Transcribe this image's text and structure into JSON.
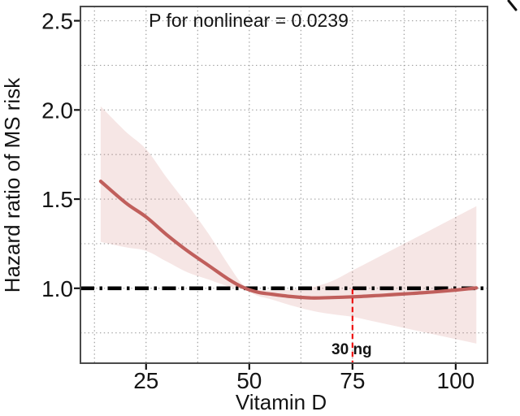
{
  "chart_data": {
    "type": "line",
    "annotation": "P for nonlinear = 0.0239",
    "xlabel": "Vitamin D",
    "ylabel": "Hazard ratio of MS risk",
    "x_ticks": [
      "25",
      "50",
      "75",
      "100"
    ],
    "x_tick_values": [
      25,
      50,
      75,
      100
    ],
    "y_ticks": [
      "1.0",
      "1.5",
      "2.0",
      "2.5"
    ],
    "y_tick_values": [
      1.0,
      1.5,
      2.0,
      2.5
    ],
    "xlim": [
      9.1,
      107.7
    ],
    "ylim": [
      0.58,
      2.58
    ],
    "grid": {
      "style": "dotted",
      "color": "#9e9e9e",
      "x_step": 12.5,
      "y_step": 0.25
    },
    "reference_line": {
      "y": 1.0,
      "color": "#000000",
      "style": "dash-dot"
    },
    "threshold_line": {
      "x": 75,
      "label": "30 ng",
      "color": "#ee1111",
      "style": "dashed"
    },
    "series": [
      {
        "name": "hazard-ratio-spline",
        "color": "#c05f5c",
        "x": [
          14,
          20,
          25,
          30,
          35,
          40,
          45,
          48.5,
          52,
          55,
          60,
          65,
          70,
          75,
          80,
          85,
          90,
          95,
          100,
          105
        ],
        "y": [
          1.6,
          1.48,
          1.4,
          1.3,
          1.21,
          1.13,
          1.05,
          1.005,
          0.978,
          0.968,
          0.954,
          0.946,
          0.948,
          0.952,
          0.958,
          0.965,
          0.972,
          0.98,
          0.99,
          1.002
        ]
      }
    ],
    "ci_band": {
      "name": "95-percent-confidence-band",
      "fill": "rgba(198,101,96,0.16)",
      "x": [
        14,
        20,
        25,
        30,
        35,
        40,
        45,
        48.5,
        52,
        55,
        60,
        65,
        70,
        75,
        80,
        85,
        90,
        95,
        100,
        105
      ],
      "upper": [
        2.02,
        1.88,
        1.78,
        1.62,
        1.47,
        1.31,
        1.13,
        1.02,
        0.992,
        0.988,
        0.992,
        1.005,
        1.04,
        1.1,
        1.16,
        1.22,
        1.28,
        1.34,
        1.4,
        1.46
      ],
      "lower": [
        1.26,
        1.23,
        1.21,
        1.15,
        1.09,
        1.05,
        1.01,
        0.995,
        0.958,
        0.94,
        0.905,
        0.875,
        0.855,
        0.84,
        0.815,
        0.79,
        0.765,
        0.74,
        0.715,
        0.69
      ]
    },
    "panel": {
      "background": "#ffffff",
      "border_color": "#4a4a4a"
    },
    "decorations": {
      "top_right_mark": "cropped-partial-glyph"
    }
  }
}
